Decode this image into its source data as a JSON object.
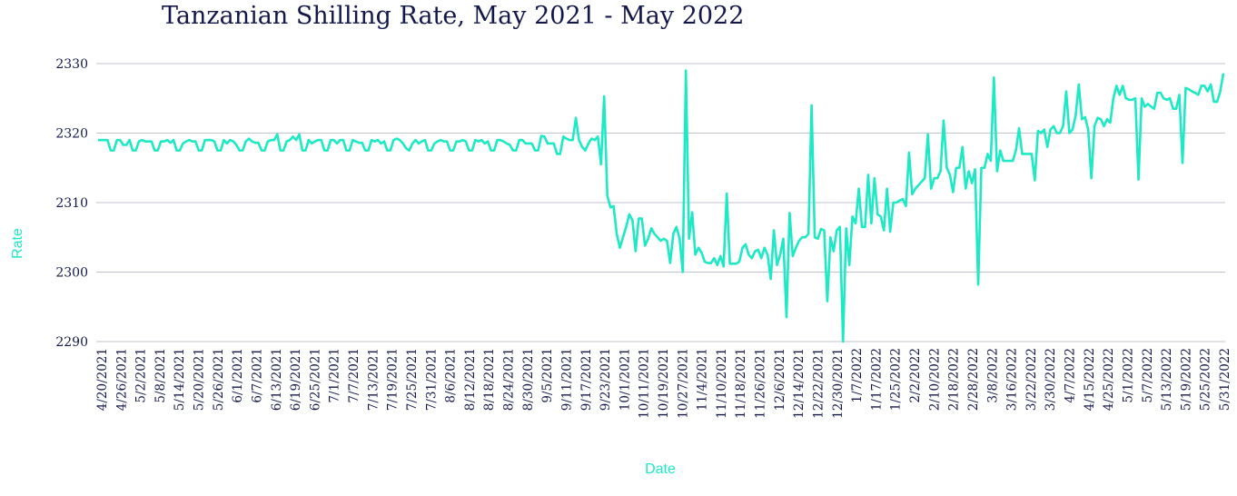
{
  "chart_data": {
    "type": "line",
    "title": "Tanzanian Shilling Rate, May 2021 - May 2022",
    "xlabel": "Date",
    "ylabel": "Rate",
    "ylim": [
      2290,
      2330
    ],
    "yticks": [
      2290,
      2300,
      2310,
      2320,
      2330
    ],
    "grid": true,
    "line_color": "#1de9c4",
    "text_color": "#14174a",
    "x_tick_labels": [
      "4/20/2021",
      "4/26/2021",
      "5/2/2021",
      "5/8/2021",
      "5/14/2021",
      "5/20/2021",
      "5/26/2021",
      "6/1/2021",
      "6/7/2021",
      "6/13/2021",
      "6/19/2021",
      "6/25/2021",
      "7/1/2021",
      "7/7/2021",
      "7/13/2021",
      "7/19/2021",
      "7/25/2021",
      "7/31/2021",
      "8/6/2021",
      "8/12/2021",
      "8/18/2021",
      "8/24/2021",
      "8/30/2021",
      "9/5/2021",
      "9/11/2021",
      "9/17/2021",
      "9/23/2021",
      "10/1/2021",
      "10/11/2021",
      "10/19/2021",
      "10/27/2021",
      "11/4/2021",
      "11/10/2021",
      "11/18/2021",
      "11/26/2021",
      "12/6/2021",
      "12/14/2021",
      "12/22/2021",
      "12/30/2021",
      "1/7/2022",
      "1/17/2022",
      "1/25/2022",
      "2/2/2022",
      "2/10/2022",
      "2/18/2022",
      "2/28/2022",
      "3/8/2022",
      "3/16/2022",
      "3/22/2022",
      "3/30/2022",
      "4/7/2022",
      "4/15/2022",
      "4/25/2022",
      "5/1/2022",
      "5/7/2022",
      "5/13/2022",
      "5/19/2022",
      "5/25/2022",
      "5/31/2022"
    ],
    "series": [
      {
        "values": [
          2319.0,
          2319.0,
          2319.0,
          2319.0,
          2317.5,
          2317.5,
          2319.0,
          2319.0,
          2318.3,
          2318.3,
          2319.0,
          2317.5,
          2317.5,
          2318.8,
          2319.0,
          2318.8,
          2318.8,
          2318.8,
          2317.5,
          2317.5,
          2318.8,
          2318.8,
          2319.0,
          2318.6,
          2319.0,
          2317.5,
          2317.5,
          2318.5,
          2318.8,
          2319.0,
          2318.8,
          2318.8,
          2317.5,
          2317.5,
          2319.0,
          2319.0,
          2319.0,
          2318.8,
          2317.5,
          2317.5,
          2319.0,
          2318.5,
          2319.0,
          2318.8,
          2318.3,
          2317.5,
          2317.5,
          2318.8,
          2319.2,
          2318.8,
          2318.6,
          2318.6,
          2317.5,
          2317.5,
          2318.8,
          2319.0,
          2319.0,
          2319.8,
          2317.5,
          2317.5,
          2318.8,
          2319.0,
          2319.5,
          2319.0,
          2319.8,
          2317.5,
          2317.5,
          2319.0,
          2318.5,
          2318.8,
          2319.0,
          2319.0,
          2317.5,
          2317.5,
          2319.0,
          2319.0,
          2318.5,
          2319.0,
          2319.0,
          2317.5,
          2317.5,
          2319.0,
          2318.8,
          2318.6,
          2318.6,
          2317.5,
          2317.5,
          2319.0,
          2318.8,
          2319.0,
          2318.5,
          2318.8,
          2317.5,
          2317.5,
          2319.0,
          2319.2,
          2319.0,
          2318.5,
          2317.8,
          2317.5,
          2318.5,
          2319.0,
          2318.5,
          2318.8,
          2319.0,
          2317.5,
          2317.5,
          2318.5,
          2318.8,
          2319.0,
          2318.8,
          2318.8,
          2317.5,
          2317.5,
          2318.8,
          2318.8,
          2319.0,
          2318.8,
          2317.5,
          2317.5,
          2319.0,
          2318.8,
          2319.0,
          2318.5,
          2318.8,
          2317.5,
          2317.5,
          2319.0,
          2319.0,
          2318.8,
          2318.5,
          2318.3,
          2317.5,
          2317.5,
          2319.0,
          2319.0,
          2318.5,
          2318.5,
          2318.5,
          2317.5,
          2317.5,
          2319.6,
          2319.5,
          2318.5,
          2318.5,
          2318.5,
          2317.0,
          2317.0,
          2319.5,
          2319.2,
          2319.0,
          2319.0,
          2322.2,
          2319.0,
          2318.0,
          2317.5,
          2318.5,
          2319.2,
          2319.0,
          2319.5,
          2315.5,
          2325.3,
          2311.0,
          2309.3,
          2309.5,
          2305.5,
          2303.5,
          2305.0,
          2306.5,
          2308.3,
          2307.5,
          2303.0,
          2307.7,
          2307.7,
          2303.8,
          2304.8,
          2306.3,
          2305.5,
          2305.0,
          2304.5,
          2304.8,
          2304.5,
          2301.3,
          2305.5,
          2306.5,
          2304.8,
          2300.0,
          2329.0,
          2304.8,
          2308.6,
          2302.5,
          2303.5,
          2302.8,
          2301.5,
          2301.3,
          2301.3,
          2302.0,
          2301.0,
          2302.3,
          2300.8,
          2311.3,
          2301.2,
          2301.2,
          2301.2,
          2301.5,
          2303.5,
          2304.0,
          2302.5,
          2302.0,
          2303.0,
          2303.2,
          2302.0,
          2303.5,
          2302.5,
          2299.0,
          2306.0,
          2301.0,
          2302.5,
          2304.8,
          2293.5,
          2308.5,
          2302.3,
          2303.5,
          2304.5,
          2305.0,
          2305.0,
          2305.5,
          2324.0,
          2305.0,
          2304.8,
          2306.2,
          2306.0,
          2295.8,
          2305.0,
          2303.0,
          2306.0,
          2306.5,
          2290.0,
          2306.3,
          2301.0,
          2308.0,
          2307.0,
          2312.0,
          2306.5,
          2306.5,
          2314.0,
          2307.0,
          2313.5,
          2308.3,
          2308.0,
          2306.0,
          2312.0,
          2305.8,
          2310.0,
          2310.0,
          2310.3,
          2310.5,
          2309.5,
          2317.2,
          2311.2,
          2312.0,
          2312.5,
          2313.0,
          2313.5,
          2319.8,
          2312.0,
          2313.5,
          2313.5,
          2314.5,
          2321.8,
          2315.0,
          2314.0,
          2311.5,
          2315.0,
          2315.0,
          2318.0,
          2312.0,
          2314.5,
          2312.8,
          2314.8,
          2298.2,
          2315.0,
          2315.0,
          2317.0,
          2316.0,
          2328.0,
          2314.5,
          2317.5,
          2316.0,
          2316.0,
          2316.0,
          2316.0,
          2317.5,
          2320.7,
          2317.0,
          2317.0,
          2317.0,
          2317.0,
          2313.2,
          2320.3,
          2320.0,
          2320.5,
          2318.0,
          2320.5,
          2321.0,
          2320.0,
          2320.0,
          2321.0,
          2326.0,
          2320.0,
          2320.5,
          2322.5,
          2327.0,
          2322.0,
          2322.3,
          2320.5,
          2313.5,
          2321.0,
          2322.2,
          2322.0,
          2321.0,
          2322.0,
          2321.5,
          2325.0,
          2326.8,
          2325.5,
          2326.8,
          2325.0,
          2324.8,
          2324.8,
          2325.0,
          2313.3,
          2325.0,
          2323.8,
          2324.2,
          2323.8,
          2323.5,
          2325.8,
          2325.8,
          2325.0,
          2324.8,
          2325.0,
          2323.5,
          2323.5,
          2325.5,
          2315.7,
          2326.5,
          2326.3,
          2326.0,
          2325.8,
          2325.5,
          2326.8,
          2326.8,
          2326.0,
          2327.0,
          2324.5,
          2324.5,
          2326.0,
          2328.6
        ]
      }
    ]
  }
}
